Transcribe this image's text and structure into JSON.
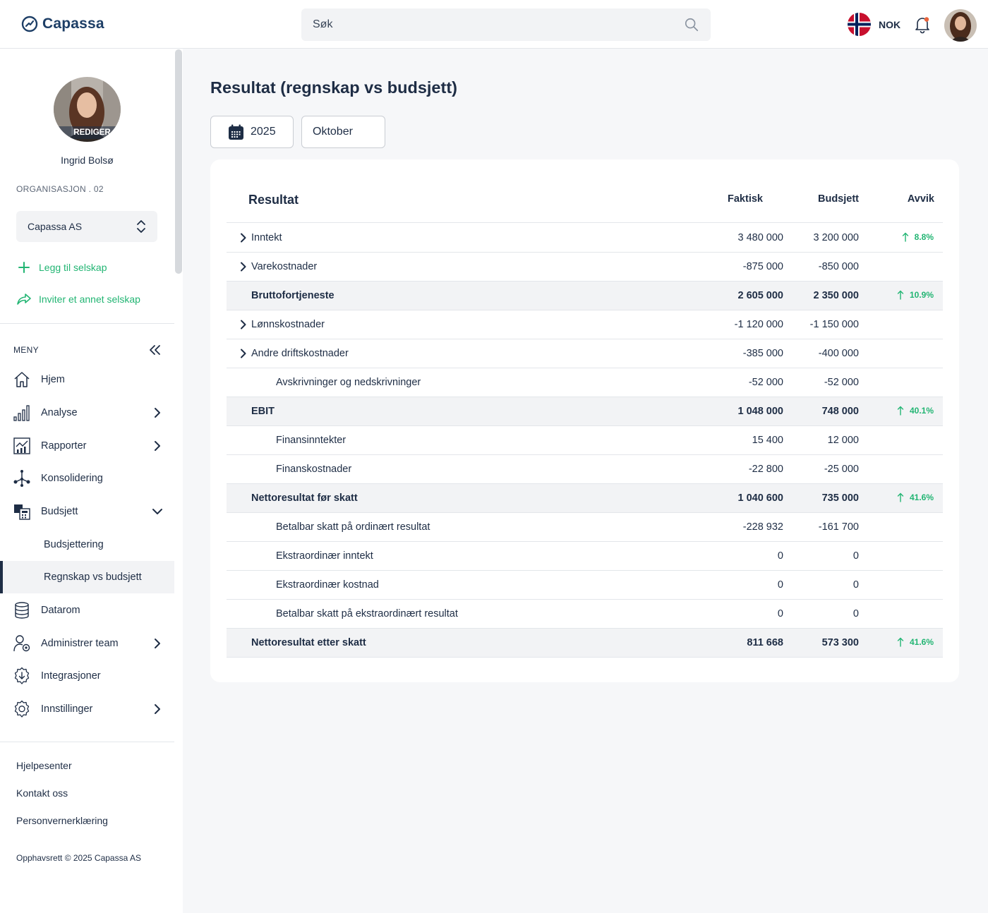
{
  "header": {
    "logo_text": "Capassa",
    "search_placeholder": "Søk",
    "currency": "NOK"
  },
  "profile": {
    "edit_label": "REDIGER",
    "name": "Ingrid Bolsø",
    "org_label": "ORGANISASJON . 02",
    "company": "Capassa AS",
    "add_company": "Legg til selskap",
    "invite_company": "Inviter et annet selskap"
  },
  "menu": {
    "label": "MENY",
    "items": [
      {
        "label": "Hjem"
      },
      {
        "label": "Analyse"
      },
      {
        "label": "Rapporter"
      },
      {
        "label": "Konsolidering"
      },
      {
        "label": "Budsjett"
      },
      {
        "label": "Budsjettering"
      },
      {
        "label": "Regnskap vs budsjett"
      },
      {
        "label": "Datarom"
      },
      {
        "label": "Administrer team"
      },
      {
        "label": "Integrasjoner"
      },
      {
        "label": "Innstillinger"
      }
    ]
  },
  "footer": {
    "links": [
      "Hjelpesenter",
      "Kontakt oss",
      "Personvernerklæring"
    ],
    "copyright": "Opphavsrett © 2025 Capassa AS"
  },
  "main": {
    "title": "Resultat (regnskap vs budsjett)",
    "year": "2025",
    "month": "Oktober"
  },
  "table": {
    "title": "Resultat",
    "col_actual": "Faktisk",
    "col_budget": "Budsjett",
    "col_deviation": "Avvik",
    "rows": [
      {
        "label": "Inntekt",
        "actual": "3 480 000",
        "budget": "3 200 000",
        "deviation": "8.8%"
      },
      {
        "label": "Varekostnader",
        "actual": "-875 000",
        "budget": "-850 000",
        "deviation": ""
      },
      {
        "label": "Bruttofortjeneste",
        "actual": "2 605 000",
        "budget": "2 350 000",
        "deviation": "10.9%"
      },
      {
        "label": "Lønnskostnader",
        "actual": "-1 120 000",
        "budget": "-1 150 000",
        "deviation": ""
      },
      {
        "label": "Andre driftskostnader",
        "actual": "-385 000",
        "budget": "-400 000",
        "deviation": ""
      },
      {
        "label": "Avskrivninger og nedskrivninger",
        "actual": "-52 000",
        "budget": "-52 000",
        "deviation": ""
      },
      {
        "label": "EBIT",
        "actual": "1 048 000",
        "budget": "748 000",
        "deviation": "40.1%"
      },
      {
        "label": "Finansinntekter",
        "actual": "15 400",
        "budget": "12 000",
        "deviation": ""
      },
      {
        "label": "Finanskostnader",
        "actual": "-22 800",
        "budget": "-25 000",
        "deviation": ""
      },
      {
        "label": "Nettoresultat før skatt",
        "actual": "1 040 600",
        "budget": "735 000",
        "deviation": "41.6%"
      },
      {
        "label": "Betalbar skatt på ordinært resultat",
        "actual": "-228 932",
        "budget": "-161 700",
        "deviation": ""
      },
      {
        "label": "Ekstraordinær inntekt",
        "actual": "0",
        "budget": "0",
        "deviation": ""
      },
      {
        "label": "Ekstraordinær kostnad",
        "actual": "0",
        "budget": "0",
        "deviation": ""
      },
      {
        "label": "Betalbar skatt på ekstraordinært resultat",
        "actual": "0",
        "budget": "0",
        "deviation": ""
      },
      {
        "label": "Nettoresultat etter skatt",
        "actual": "811 668",
        "budget": "573 300",
        "deviation": "41.6%"
      }
    ]
  },
  "colors": {
    "accent_green": "#22b573",
    "text_dark": "#1e2d45",
    "total_row_bg": "#f2f3f5"
  }
}
